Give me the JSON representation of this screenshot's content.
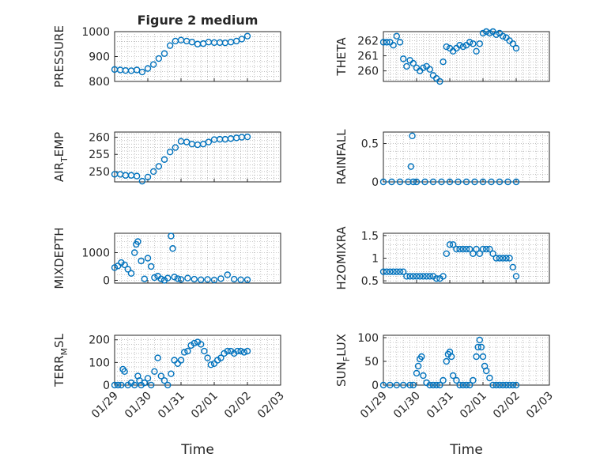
{
  "figure": {
    "xlabel": "Time"
  },
  "colors": {
    "marker": "#0072BD"
  },
  "x_ticks": [
    "01/29",
    "01/30",
    "01/31",
    "02/01",
    "02/02",
    "02/03"
  ],
  "chart_data": [
    {
      "id": "pressure",
      "type": "scatter",
      "title": "Figure 2 medium",
      "ylabel": "PRESSURE",
      "xlim": [
        0,
        5
      ],
      "ylim": [
        800,
        1000
      ],
      "yticks": [
        800,
        900,
        1000
      ],
      "yticklabels": [
        "800",
        "900",
        "1000"
      ],
      "grid": true,
      "x": [
        0,
        0.17,
        0.33,
        0.5,
        0.67,
        0.83,
        1,
        1.17,
        1.33,
        1.5,
        1.67,
        1.83,
        2,
        2.17,
        2.33,
        2.5,
        2.67,
        2.83,
        3,
        3.17,
        3.33,
        3.5,
        3.67,
        3.83,
        4
      ],
      "y": [
        848,
        846,
        844,
        843,
        846,
        838,
        852,
        868,
        892,
        912,
        944,
        962,
        966,
        962,
        958,
        950,
        952,
        958,
        956,
        956,
        955,
        958,
        962,
        970,
        982
      ]
    },
    {
      "id": "theta",
      "type": "scatter",
      "ylabel": "THETA",
      "xlim": [
        0,
        5
      ],
      "ylim": [
        259.3,
        262.6
      ],
      "yticks": [
        260,
        261,
        262
      ],
      "yticklabels": [
        "260",
        "261",
        "262"
      ],
      "grid": true,
      "x": [
        0,
        0.1,
        0.2,
        0.3,
        0.4,
        0.5,
        0.6,
        0.7,
        0.8,
        0.9,
        1,
        1.1,
        1.2,
        1.3,
        1.4,
        1.5,
        1.6,
        1.7,
        1.8,
        1.9,
        2,
        2.1,
        2.2,
        2.3,
        2.4,
        2.5,
        2.6,
        2.7,
        2.8,
        2.9,
        3,
        3.1,
        3.2,
        3.3,
        3.4,
        3.5,
        3.6,
        3.7,
        3.8,
        3.9,
        4
      ],
      "y": [
        261.9,
        261.9,
        261.9,
        261.7,
        262.3,
        261.9,
        260.8,
        260.3,
        260.7,
        260.5,
        260.2,
        260.0,
        260.2,
        260.3,
        260.1,
        259.7,
        259.5,
        259.3,
        260.6,
        261.6,
        261.5,
        261.3,
        261.5,
        261.7,
        261.6,
        261.7,
        261.9,
        261.8,
        261.3,
        261.8,
        262.5,
        262.6,
        262.5,
        262.6,
        262.4,
        262.5,
        262.3,
        262.2,
        262.0,
        261.8,
        261.5
      ]
    },
    {
      "id": "airtemp",
      "type": "scatter",
      "ylabel": "AIR_TEMP",
      "xlim": [
        0,
        5
      ],
      "ylim": [
        247,
        261.5
      ],
      "yticks": [
        250,
        255,
        260
      ],
      "yticklabels": [
        "250",
        "255",
        "260"
      ],
      "grid": true,
      "x": [
        0,
        0.17,
        0.33,
        0.5,
        0.67,
        0.83,
        1,
        1.17,
        1.33,
        1.5,
        1.67,
        1.83,
        2,
        2.17,
        2.33,
        2.5,
        2.67,
        2.83,
        3,
        3.17,
        3.33,
        3.5,
        3.67,
        3.83,
        4
      ],
      "y": [
        249.2,
        249.2,
        248.9,
        248.9,
        248.7,
        247.2,
        248.4,
        250,
        251.5,
        253.5,
        255.7,
        257.0,
        258.8,
        258.6,
        258.0,
        257.8,
        258.0,
        258.6,
        259.3,
        259.4,
        259.4,
        259.6,
        259.8,
        260.0,
        260.1
      ]
    },
    {
      "id": "rainfall",
      "type": "scatter",
      "ylabel": "RAINFALL",
      "xlim": [
        0,
        5
      ],
      "ylim": [
        0,
        0.65
      ],
      "yticks": [
        0,
        0.5
      ],
      "yticklabels": [
        "0",
        "0.5"
      ],
      "grid": true,
      "x": [
        0,
        0.25,
        0.5,
        0.75,
        0.83,
        0.87,
        0.9,
        1,
        1.25,
        1.5,
        1.75,
        2,
        2.25,
        2.5,
        2.75,
        3,
        3.25,
        3.5,
        3.75,
        4
      ],
      "y": [
        0,
        0,
        0,
        0,
        0.2,
        0.6,
        0,
        0,
        0,
        0,
        0,
        0,
        0,
        0,
        0,
        0,
        0,
        0,
        0,
        0
      ]
    },
    {
      "id": "mixdepth",
      "type": "scatter",
      "ylabel": "MIXDEPTH",
      "xlim": [
        0,
        5
      ],
      "ylim": [
        -100,
        1700
      ],
      "yticks": [
        0,
        1000
      ],
      "yticklabels": [
        "0",
        "1000"
      ],
      "grid": true,
      "x": [
        0,
        0.1,
        0.2,
        0.3,
        0.4,
        0.5,
        0.6,
        0.65,
        0.7,
        0.8,
        0.9,
        1,
        1.1,
        1.2,
        1.3,
        1.4,
        1.5,
        1.6,
        1.7,
        1.75,
        1.8,
        1.9,
        2,
        2.2,
        2.4,
        2.6,
        2.8,
        3,
        3.2,
        3.4,
        3.6,
        3.8,
        4
      ],
      "y": [
        460,
        520,
        640,
        560,
        400,
        250,
        1000,
        1300,
        1400,
        700,
        50,
        800,
        500,
        100,
        150,
        50,
        0,
        80,
        1600,
        1150,
        120,
        60,
        30,
        80,
        40,
        20,
        30,
        10,
        60,
        200,
        40,
        20,
        20
      ]
    },
    {
      "id": "h2omixra",
      "type": "scatter",
      "ylabel": "H2OMIXRA",
      "xlim": [
        0,
        5
      ],
      "ylim": [
        0.45,
        1.55
      ],
      "yticks": [
        0.5,
        1,
        1.5
      ],
      "yticklabels": [
        "0.5",
        "1",
        "1.5"
      ],
      "grid": true,
      "x": [
        0,
        0.1,
        0.2,
        0.3,
        0.4,
        0.5,
        0.6,
        0.7,
        0.8,
        0.9,
        1,
        1.1,
        1.2,
        1.3,
        1.4,
        1.5,
        1.6,
        1.7,
        1.8,
        1.9,
        2,
        2.1,
        2.2,
        2.3,
        2.4,
        2.5,
        2.6,
        2.7,
        2.8,
        2.9,
        3,
        3.1,
        3.2,
        3.3,
        3.4,
        3.5,
        3.6,
        3.7,
        3.8,
        3.9,
        4
      ],
      "y": [
        0.7,
        0.7,
        0.7,
        0.7,
        0.7,
        0.7,
        0.7,
        0.6,
        0.6,
        0.6,
        0.6,
        0.6,
        0.6,
        0.6,
        0.6,
        0.6,
        0.55,
        0.55,
        0.6,
        1.1,
        1.3,
        1.3,
        1.2,
        1.2,
        1.2,
        1.2,
        1.2,
        1.1,
        1.2,
        1.1,
        1.2,
        1.2,
        1.2,
        1.1,
        1.0,
        1.0,
        1.0,
        1.0,
        1.0,
        0.8,
        0.6
      ]
    },
    {
      "id": "terrmsl",
      "type": "scatter",
      "ylabel": "TERR_MSL",
      "xlim": [
        0,
        5
      ],
      "ylim": [
        0,
        220
      ],
      "yticks": [
        0,
        100,
        200
      ],
      "yticklabels": [
        "0",
        "100",
        "200"
      ],
      "grid": true,
      "x": [
        0,
        0.1,
        0.2,
        0.25,
        0.3,
        0.4,
        0.5,
        0.6,
        0.7,
        0.75,
        0.8,
        0.9,
        1,
        1.1,
        1.2,
        1.3,
        1.4,
        1.5,
        1.6,
        1.7,
        1.8,
        1.9,
        2,
        2.1,
        2.2,
        2.3,
        2.4,
        2.5,
        2.6,
        2.7,
        2.8,
        2.9,
        3,
        3.1,
        3.2,
        3.3,
        3.4,
        3.5,
        3.6,
        3.7,
        3.8,
        3.9,
        4
      ],
      "y": [
        0,
        0,
        0,
        70,
        60,
        0,
        10,
        0,
        40,
        20,
        0,
        10,
        30,
        0,
        60,
        120,
        40,
        20,
        0,
        50,
        110,
        95,
        110,
        145,
        150,
        175,
        185,
        190,
        180,
        150,
        120,
        90,
        95,
        110,
        120,
        140,
        150,
        150,
        140,
        150,
        150,
        145,
        150
      ]
    },
    {
      "id": "sunflux",
      "type": "scatter",
      "ylabel": "SUN_FLUX",
      "xlim": [
        0,
        5
      ],
      "ylim": [
        0,
        105
      ],
      "yticks": [
        0,
        50,
        100
      ],
      "yticklabels": [
        "0",
        "50",
        "100"
      ],
      "grid": true,
      "x": [
        0,
        0.2,
        0.4,
        0.6,
        0.8,
        0.9,
        1,
        1.05,
        1.1,
        1.15,
        1.2,
        1.3,
        1.4,
        1.5,
        1.6,
        1.7,
        1.8,
        1.9,
        1.95,
        2,
        2.05,
        2.1,
        2.2,
        2.3,
        2.4,
        2.5,
        2.6,
        2.7,
        2.8,
        2.85,
        2.9,
        2.95,
        3,
        3.05,
        3.1,
        3.2,
        3.3,
        3.4,
        3.5,
        3.6,
        3.7,
        3.8,
        3.9,
        4
      ],
      "y": [
        0,
        0,
        0,
        0,
        0,
        0,
        25,
        40,
        55,
        60,
        20,
        5,
        0,
        0,
        0,
        0,
        10,
        50,
        65,
        70,
        60,
        20,
        10,
        0,
        0,
        0,
        0,
        10,
        60,
        80,
        95,
        80,
        60,
        40,
        30,
        15,
        0,
        0,
        0,
        0,
        0,
        0,
        0,
        0
      ]
    }
  ]
}
